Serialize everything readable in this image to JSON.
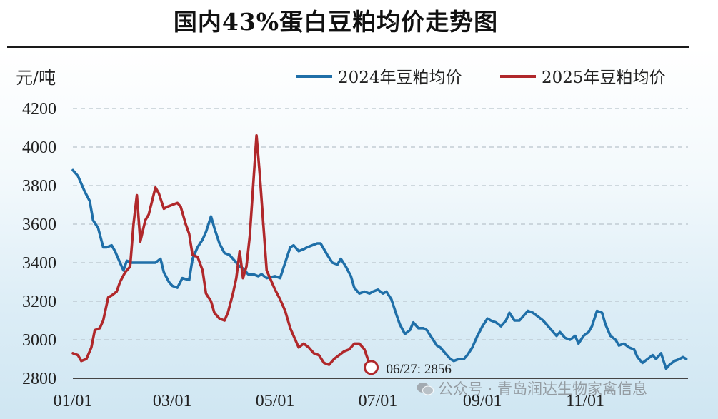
{
  "chart_data": {
    "type": "line",
    "title": "国内43%蛋白豆粕均价走势图",
    "ylabel": "元/吨",
    "ylim": [
      2800,
      4200
    ],
    "yticks": [
      2800,
      3000,
      3200,
      3400,
      3600,
      3800,
      4000,
      4200
    ],
    "xticks": [
      "01/01",
      "03/01",
      "05/01",
      "07/01",
      "09/01",
      "11/01"
    ],
    "grid": "horizontal dashed",
    "legend_position": "top-right",
    "annotation": "06/27: 2856",
    "series": [
      {
        "name": "2024年豆粕均价",
        "color": "#1f6fa8",
        "points": [
          [
            "01/01",
            3880
          ],
          [
            "01/04",
            3850
          ],
          [
            "01/08",
            3770
          ],
          [
            "01/11",
            3720
          ],
          [
            "01/13",
            3620
          ],
          [
            "01/16",
            3580
          ],
          [
            "01/19",
            3480
          ],
          [
            "01/21",
            3480
          ],
          [
            "01/24",
            3490
          ],
          [
            "01/26",
            3460
          ],
          [
            "01/29",
            3400
          ],
          [
            "01/31",
            3360
          ],
          [
            "02/02",
            3410
          ],
          [
            "02/05",
            3400
          ],
          [
            "02/08",
            3400
          ],
          [
            "02/14",
            3400
          ],
          [
            "02/19",
            3400
          ],
          [
            "02/22",
            3420
          ],
          [
            "02/24",
            3350
          ],
          [
            "02/27",
            3300
          ],
          [
            "03/01",
            3280
          ],
          [
            "03/04",
            3270
          ],
          [
            "03/07",
            3320
          ],
          [
            "03/11",
            3310
          ],
          [
            "03/13",
            3420
          ],
          [
            "03/16",
            3480
          ],
          [
            "03/19",
            3520
          ],
          [
            "03/21",
            3560
          ],
          [
            "03/24",
            3640
          ],
          [
            "03/26",
            3580
          ],
          [
            "03/29",
            3500
          ],
          [
            "04/01",
            3450
          ],
          [
            "04/04",
            3440
          ],
          [
            "04/07",
            3410
          ],
          [
            "04/10",
            3380
          ],
          [
            "04/12",
            3370
          ],
          [
            "04/15",
            3340
          ],
          [
            "04/18",
            3340
          ],
          [
            "04/21",
            3330
          ],
          [
            "04/23",
            3340
          ],
          [
            "04/26",
            3320
          ],
          [
            "05/01",
            3330
          ],
          [
            "05/04",
            3320
          ],
          [
            "05/07",
            3400
          ],
          [
            "05/10",
            3480
          ],
          [
            "05/12",
            3490
          ],
          [
            "05/15",
            3460
          ],
          [
            "05/18",
            3470
          ],
          [
            "05/20",
            3480
          ],
          [
            "05/23",
            3490
          ],
          [
            "05/26",
            3500
          ],
          [
            "05/28",
            3500
          ],
          [
            "06/01",
            3440
          ],
          [
            "06/04",
            3400
          ],
          [
            "06/07",
            3390
          ],
          [
            "06/09",
            3420
          ],
          [
            "06/12",
            3380
          ],
          [
            "06/15",
            3330
          ],
          [
            "06/17",
            3270
          ],
          [
            "06/20",
            3240
          ],
          [
            "06/23",
            3250
          ],
          [
            "06/26",
            3240
          ],
          [
            "06/28",
            3250
          ],
          [
            "07/01",
            3260
          ],
          [
            "07/04",
            3240
          ],
          [
            "07/06",
            3250
          ],
          [
            "07/09",
            3210
          ],
          [
            "07/12",
            3130
          ],
          [
            "07/14",
            3080
          ],
          [
            "07/17",
            3030
          ],
          [
            "07/20",
            3050
          ],
          [
            "07/22",
            3090
          ],
          [
            "07/25",
            3060
          ],
          [
            "07/28",
            3060
          ],
          [
            "07/30",
            3050
          ],
          [
            "08/02",
            3010
          ],
          [
            "08/05",
            2970
          ],
          [
            "08/07",
            2960
          ],
          [
            "08/10",
            2930
          ],
          [
            "08/13",
            2900
          ],
          [
            "08/15",
            2890
          ],
          [
            "08/18",
            2900
          ],
          [
            "08/21",
            2900
          ],
          [
            "08/23",
            2920
          ],
          [
            "08/26",
            2960
          ],
          [
            "08/29",
            3020
          ],
          [
            "09/01",
            3070
          ],
          [
            "09/04",
            3110
          ],
          [
            "09/06",
            3100
          ],
          [
            "09/09",
            3090
          ],
          [
            "09/12",
            3070
          ],
          [
            "09/15",
            3100
          ],
          [
            "09/17",
            3140
          ],
          [
            "09/20",
            3100
          ],
          [
            "09/23",
            3100
          ],
          [
            "09/25",
            3120
          ],
          [
            "09/28",
            3150
          ],
          [
            "10/01",
            3140
          ],
          [
            "10/04",
            3120
          ],
          [
            "10/07",
            3100
          ],
          [
            "10/09",
            3080
          ],
          [
            "10/12",
            3050
          ],
          [
            "10/15",
            3020
          ],
          [
            "10/17",
            3040
          ],
          [
            "10/20",
            3010
          ],
          [
            "10/23",
            3000
          ],
          [
            "10/26",
            3020
          ],
          [
            "10/28",
            2980
          ],
          [
            "10/31",
            3020
          ],
          [
            "11/03",
            3040
          ],
          [
            "11/05",
            3070
          ],
          [
            "11/08",
            3150
          ],
          [
            "11/11",
            3140
          ],
          [
            "11/13",
            3080
          ],
          [
            "11/16",
            3020
          ],
          [
            "11/19",
            3000
          ],
          [
            "11/21",
            2970
          ],
          [
            "11/24",
            2980
          ],
          [
            "11/27",
            2960
          ],
          [
            "11/30",
            2950
          ],
          [
            "12/02",
            2910
          ],
          [
            "12/05",
            2880
          ],
          [
            "12/08",
            2900
          ],
          [
            "12/11",
            2920
          ],
          [
            "12/13",
            2900
          ],
          [
            "12/16",
            2930
          ],
          [
            "12/19",
            2850
          ],
          [
            "12/21",
            2870
          ],
          [
            "12/24",
            2890
          ],
          [
            "12/27",
            2900
          ],
          [
            "12/29",
            2910
          ],
          [
            "12/31",
            2900
          ]
        ]
      },
      {
        "name": "2025年豆粕均价",
        "color": "#b0282b",
        "points": [
          [
            "01/01",
            2930
          ],
          [
            "01/04",
            2920
          ],
          [
            "01/06",
            2890
          ],
          [
            "01/09",
            2900
          ],
          [
            "01/12",
            2960
          ],
          [
            "01/14",
            3050
          ],
          [
            "01/17",
            3060
          ],
          [
            "01/19",
            3100
          ],
          [
            "01/22",
            3220
          ],
          [
            "01/24",
            3230
          ],
          [
            "01/27",
            3250
          ],
          [
            "01/29",
            3300
          ],
          [
            "02/01",
            3350
          ],
          [
            "02/04",
            3380
          ],
          [
            "02/06",
            3600
          ],
          [
            "02/08",
            3750
          ],
          [
            "02/10",
            3510
          ],
          [
            "02/13",
            3620
          ],
          [
            "02/15",
            3650
          ],
          [
            "02/17",
            3720
          ],
          [
            "02/19",
            3790
          ],
          [
            "02/21",
            3760
          ],
          [
            "02/24",
            3680
          ],
          [
            "02/26",
            3690
          ],
          [
            "03/01",
            3700
          ],
          [
            "03/04",
            3710
          ],
          [
            "03/06",
            3690
          ],
          [
            "03/09",
            3600
          ],
          [
            "03/11",
            3550
          ],
          [
            "03/13",
            3440
          ],
          [
            "03/16",
            3430
          ],
          [
            "03/19",
            3360
          ],
          [
            "03/21",
            3240
          ],
          [
            "03/24",
            3200
          ],
          [
            "03/26",
            3140
          ],
          [
            "03/29",
            3110
          ],
          [
            "04/01",
            3100
          ],
          [
            "04/03",
            3140
          ],
          [
            "04/06",
            3240
          ],
          [
            "04/08",
            3320
          ],
          [
            "04/10",
            3460
          ],
          [
            "04/12",
            3320
          ],
          [
            "04/14",
            3380
          ],
          [
            "04/16",
            3540
          ],
          [
            "04/18",
            3800
          ],
          [
            "04/20",
            4060
          ],
          [
            "04/22",
            3850
          ],
          [
            "04/24",
            3600
          ],
          [
            "04/26",
            3360
          ],
          [
            "04/28",
            3320
          ],
          [
            "05/01",
            3260
          ],
          [
            "05/04",
            3210
          ],
          [
            "05/07",
            3150
          ],
          [
            "05/10",
            3060
          ],
          [
            "05/13",
            3000
          ],
          [
            "05/15",
            2960
          ],
          [
            "05/18",
            2980
          ],
          [
            "05/21",
            2960
          ],
          [
            "05/24",
            2930
          ],
          [
            "05/27",
            2920
          ],
          [
            "05/30",
            2880
          ],
          [
            "06/02",
            2870
          ],
          [
            "06/05",
            2900
          ],
          [
            "06/08",
            2920
          ],
          [
            "06/11",
            2940
          ],
          [
            "06/14",
            2950
          ],
          [
            "06/17",
            2980
          ],
          [
            "06/20",
            2980
          ],
          [
            "06/23",
            2950
          ],
          [
            "06/25",
            2900
          ],
          [
            "06/27",
            2856
          ]
        ]
      }
    ]
  },
  "watermark": "公众号 · 青岛润达生物家禽信息",
  "colors": {
    "series_2024": "#1f6fa8",
    "series_2025": "#b0282b",
    "grid": "#b9c4cc",
    "title_rule": "#1a1a1a"
  }
}
